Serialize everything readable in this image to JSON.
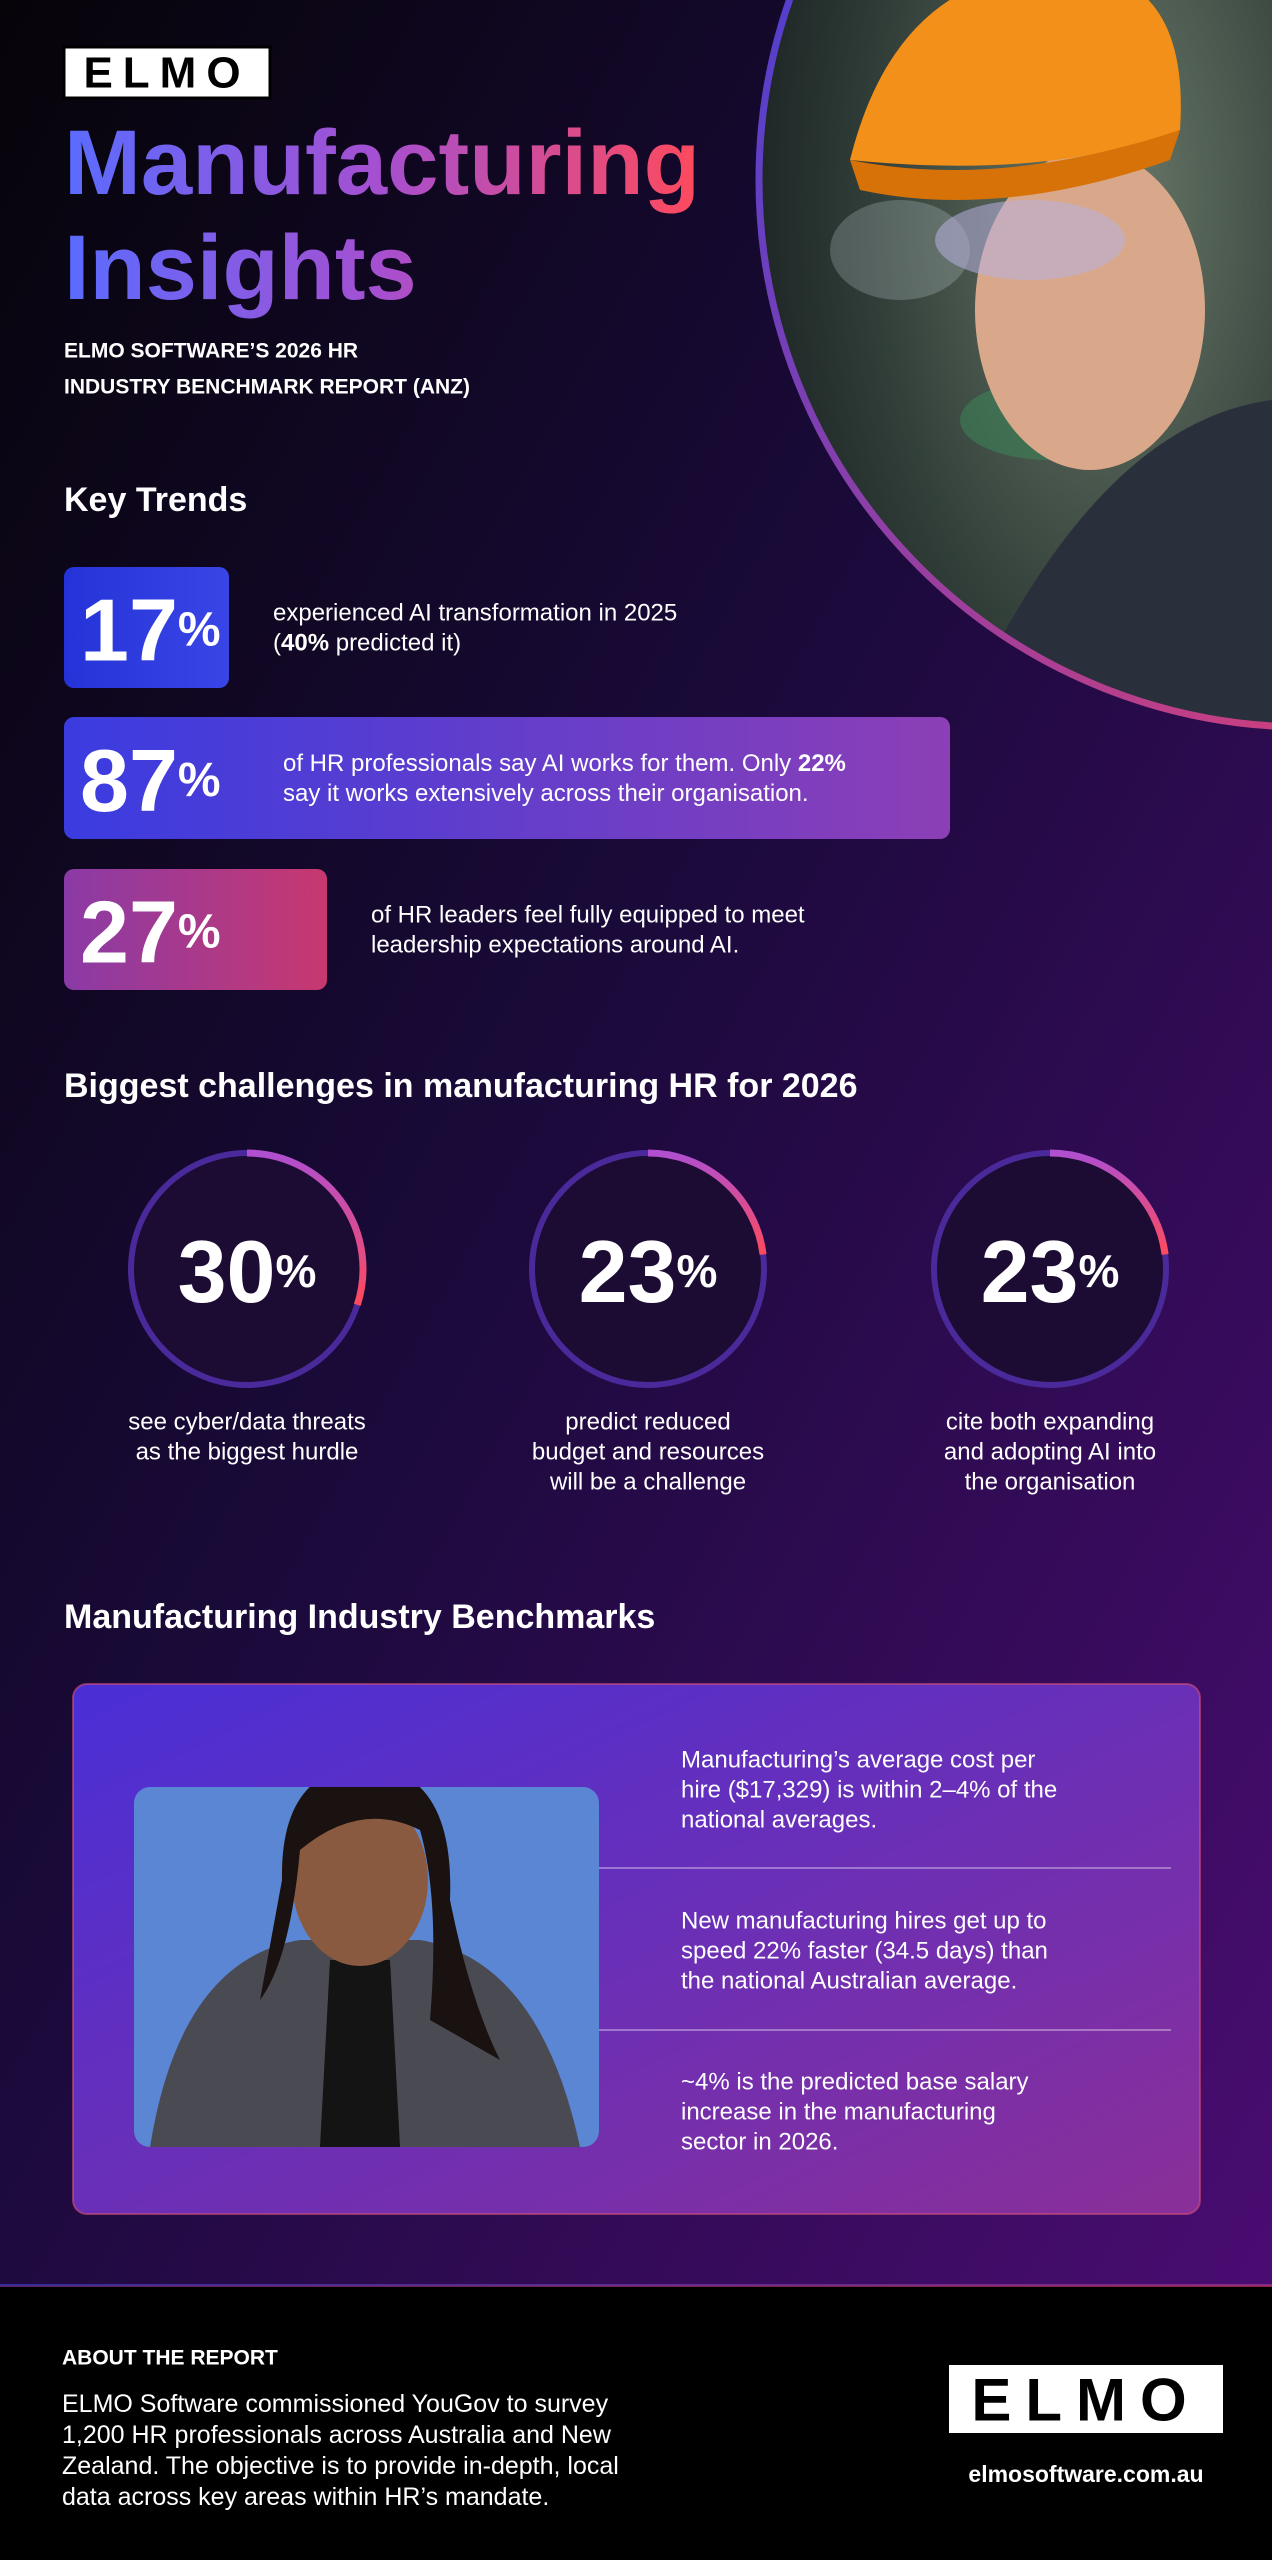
{
  "header": {
    "logo": "ELMO",
    "title_lines": [
      "Manufacturing",
      "Insights"
    ],
    "subtitle_lines": [
      "ELMO SOFTWARE’S 2026 HR",
      "INDUSTRY BENCHMARK REPORT (ANZ)"
    ]
  },
  "key_trends": {
    "heading": "Key Trends",
    "items": [
      {
        "value": "17",
        "unit": "%",
        "lines": [
          [
            "experienced AI transformation in 2025"
          ],
          [
            "(",
            "40%",
            " predicted it)"
          ]
        ]
      },
      {
        "value": "87",
        "unit": "%",
        "lines": [
          [
            "of HR professionals say AI works for them. Only ",
            "22%"
          ],
          [
            "say it works extensively across their organisation."
          ]
        ]
      },
      {
        "value": "27",
        "unit": "%",
        "lines": [
          [
            "of HR leaders feel fully equipped to meet"
          ],
          [
            "leadership expectations around AI."
          ]
        ]
      }
    ]
  },
  "challenges": {
    "heading": "Biggest challenges in manufacturing HR for 2026",
    "items": [
      {
        "value": 30,
        "unit": "%",
        "lines": [
          "see cyber/data threats",
          "as the biggest hurdle"
        ]
      },
      {
        "value": 23,
        "unit": "%",
        "lines": [
          "predict reduced",
          "budget and resources",
          "will be a challenge"
        ]
      },
      {
        "value": 23,
        "unit": "%",
        "lines": [
          "cite both expanding",
          "and adopting AI into",
          "the organisation"
        ]
      }
    ]
  },
  "benchmarks": {
    "heading": "Manufacturing Industry Benchmarks",
    "items": [
      {
        "lines": [
          "Manufacturing’s average cost per",
          "hire ($17,329) is within 2–4% of the",
          "national averages."
        ]
      },
      {
        "lines": [
          "New manufacturing hires get up to",
          "speed 22% faster (34.5 days) than",
          "the national Australian average."
        ]
      },
      {
        "lines": [
          "~4% is the predicted base salary",
          "increase in the manufacturing",
          "sector in 2026."
        ]
      }
    ]
  },
  "footer": {
    "heading": "ABOUT THE REPORT",
    "body_lines": [
      "ELMO Software commissioned YouGov to survey",
      "1,200 HR professionals across Australia and New",
      "Zealand. The objective is to provide in-depth, local",
      "data across key areas within HR’s mandate."
    ],
    "logo": "ELMO",
    "url": "elmosoftware.com.au"
  }
}
